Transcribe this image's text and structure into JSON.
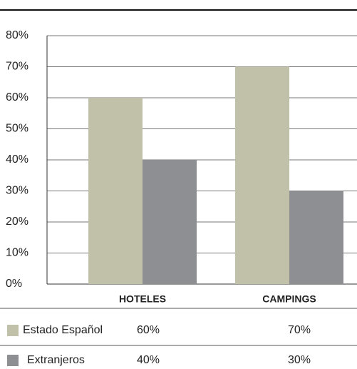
{
  "chart_data": {
    "type": "bar",
    "categories": [
      "HOTELES",
      "CAMPINGS"
    ],
    "series": [
      {
        "name": "Estado Español",
        "color": "#c0c1a8",
        "values": [
          60,
          70
        ],
        "value_labels": [
          "60%",
          "70%"
        ]
      },
      {
        "name": "Extranjeros",
        "color": "#8e8f93",
        "values": [
          40,
          30
        ],
        "value_labels": [
          "40%",
          "30%"
        ]
      }
    ],
    "ylim": [
      0,
      80
    ],
    "yticks": [
      {
        "value": 0,
        "label": "0%"
      },
      {
        "value": 10,
        "label": "10%"
      },
      {
        "value": 20,
        "label": "20%"
      },
      {
        "value": 30,
        "label": "30%"
      },
      {
        "value": 40,
        "label": "40%"
      },
      {
        "value": 50,
        "label": "50%"
      },
      {
        "value": 60,
        "label": "60%"
      },
      {
        "value": 70,
        "label": "70%"
      },
      {
        "value": 80,
        "label": "80%"
      }
    ],
    "grid": true
  }
}
